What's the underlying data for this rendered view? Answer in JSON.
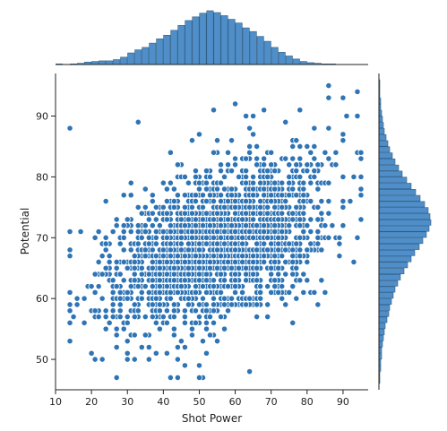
{
  "chart_data": {
    "type": "scatter",
    "title": "",
    "xlabel": "Shot Power",
    "ylabel": "Potential",
    "xlim": [
      10,
      97
    ],
    "ylim": [
      45,
      97
    ],
    "x_ticks": [
      10,
      20,
      30,
      40,
      50,
      60,
      70,
      80,
      90
    ],
    "y_ticks": [
      50,
      60,
      70,
      80,
      90
    ],
    "grid": false,
    "legend": "none",
    "marginal_plots": "histograms",
    "colors": {
      "points": "#2f74b5",
      "point_edge": "#ffffff",
      "hist_fill": "#4f8ec8",
      "hist_edge": "#2f5e86",
      "axis": "#222222",
      "background": "#ffffff"
    },
    "x_distribution": {
      "bin_start": 10,
      "bin_width": 2,
      "counts": [
        1,
        0,
        1,
        2,
        4,
        5,
        6,
        6,
        8,
        12,
        19,
        24,
        28,
        35,
        42,
        48,
        56,
        64,
        72,
        78,
        84,
        88,
        85,
        80,
        74,
        68,
        60,
        54,
        46,
        38,
        28,
        20,
        14,
        9,
        5,
        3,
        2,
        1,
        1,
        0,
        0,
        0,
        0,
        0
      ]
    },
    "y_distribution": {
      "bin_start": 46,
      "bin_width": 1,
      "counts": [
        1,
        1,
        2,
        2,
        3,
        3,
        4,
        5,
        6,
        7,
        9,
        11,
        12,
        14,
        16,
        18,
        21,
        24,
        28,
        32,
        36,
        40,
        45,
        49,
        53,
        56,
        58,
        57,
        55,
        51,
        46,
        41,
        36,
        31,
        26,
        22,
        18,
        15,
        12,
        10,
        8,
        6,
        5,
        4,
        3,
        2,
        2,
        1,
        1,
        1
      ]
    },
    "x_range_points": [
      14,
      95
    ],
    "y_range_points": [
      47,
      95
    ]
  }
}
